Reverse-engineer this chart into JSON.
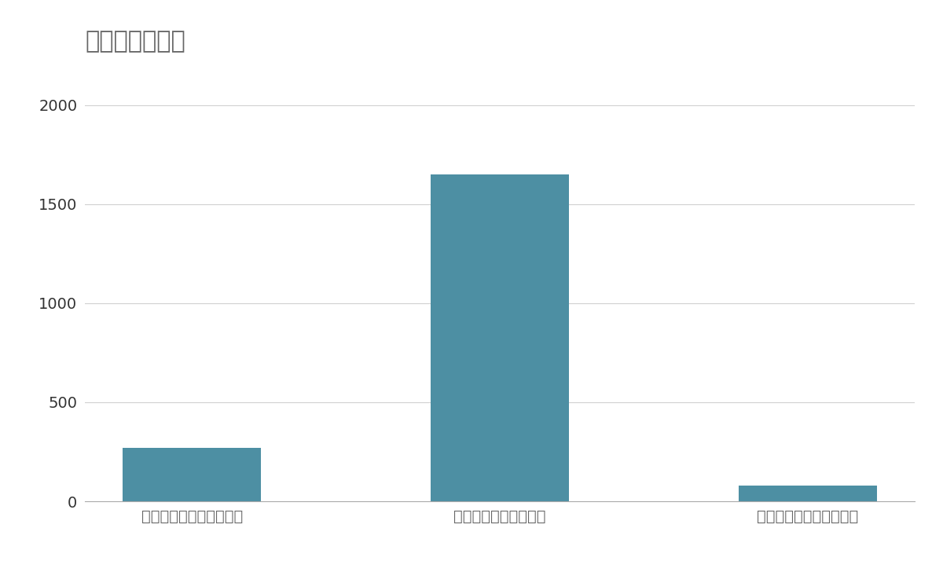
{
  "title": "競合含む売上高",
  "categories": [
    "増進会ホールディングス",
    "学研ホールディングス",
    "進学会ホールディングス"
  ],
  "values": [
    270,
    1650,
    80
  ],
  "bar_color": "#4d8fa3",
  "ylim": [
    0,
    2000
  ],
  "yticks": [
    0,
    500,
    1000,
    1500,
    2000
  ],
  "background_color": "#ffffff",
  "title_fontsize": 22,
  "tick_fontsize": 14,
  "label_fontsize": 14,
  "title_color": "#666666",
  "ytick_color": "#333333",
  "xtick_color": "#666666",
  "grid_color": "#d0d0d0",
  "spine_color": "#aaaaaa"
}
